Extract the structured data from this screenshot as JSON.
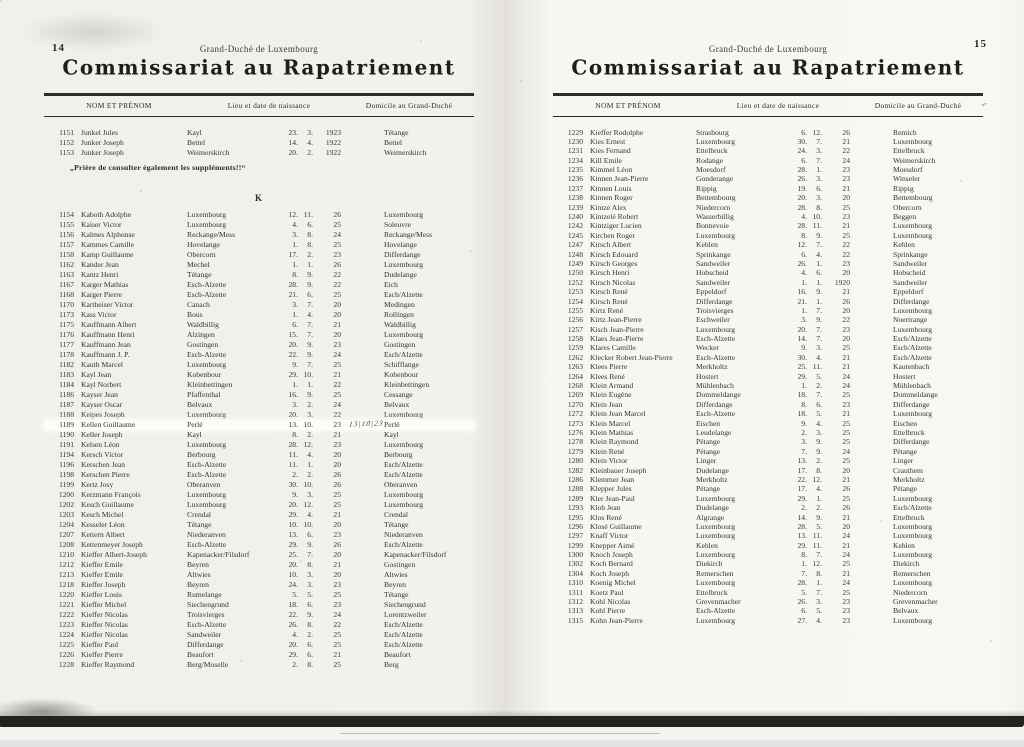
{
  "left_page": {
    "page_number": "14",
    "region_label": "Grand-Duché de Luxembourg",
    "title": "Commissariat au Rapatriement",
    "col_headers": {
      "name": "NOM ET PRÉNOM",
      "birth": "Lieu et date de naissance",
      "domicile": "Domicile au Grand-Duché"
    },
    "entries_before_note": [
      [
        "1151",
        "Junkel Jules",
        "Kayl",
        "23. 3. 1923",
        "Tétange"
      ],
      [
        "1152",
        "Junker Joseph",
        "Bettel",
        "14. 4. 1922",
        "Bettel"
      ],
      [
        "1153",
        "Junker Joseph",
        "Weimerskirch",
        "20. 2. 1922",
        "Weimerskirch"
      ]
    ],
    "note": "„Prière de consulter également les suppléments!!“",
    "section_letter": "K",
    "entries": [
      [
        "1154",
        "Kaboth Adolphe",
        "Luxembourg",
        "12. 11. 26",
        "Luxembourg"
      ],
      [
        "1155",
        "Kaiser Victor",
        "Luxembourg",
        "4. 6. 25",
        "Soleuvre"
      ],
      [
        "1156",
        "Kalmes Alphonse",
        "Reckange/Mess",
        "3. 8. 24",
        "Reckange/Mess"
      ],
      [
        "1157",
        "Kammes Camille",
        "Hovelange",
        "1. 8. 25",
        "Hovelange"
      ],
      [
        "1158",
        "Kamp Guillaume",
        "Obercorn",
        "17. 2. 23",
        "Differdange"
      ],
      [
        "1162",
        "Kander Jean",
        "Mechel",
        "1. 1. 26",
        "Luxembourg"
      ],
      [
        "1163",
        "Kantz Henri",
        "Tétange",
        "8. 9. 22",
        "Dudelange"
      ],
      [
        "1167",
        "Karger Mathias",
        "Esch-Alzette",
        "28. 9. 22",
        "Eich"
      ],
      [
        "1168",
        "Karger Pierre",
        "Esch-Alzette",
        "21. 6. 25",
        "Esch/Alzette"
      ],
      [
        "1170",
        "Kartheiser Victor",
        "Canach",
        "3. 7. 20",
        "Medingen"
      ],
      [
        "1173",
        "Kass Victor",
        "Bous",
        "1. 4. 20",
        "Rollingen"
      ],
      [
        "1175",
        "Kauffmann Albert",
        "Waldbillig",
        "6. 7. 21",
        "Waldbillig"
      ],
      [
        "1176",
        "Kauffmann Henri",
        "Alzingen",
        "15. 7. 20",
        "Luxembourg"
      ],
      [
        "1177",
        "Kauffmann Jean",
        "Gostingen",
        "20. 9. 23",
        "Gostingen"
      ],
      [
        "1178",
        "Kauffmann J. P.",
        "Esch-Alzette",
        "22. 9. 24",
        "Esch/Alzette"
      ],
      [
        "1182",
        "Kauth Marcel",
        "Luxembourg",
        "9. 7. 25",
        "Schifflange"
      ],
      [
        "1183",
        "Kayl Jean",
        "Kobenbour",
        "29. 10. 21",
        "Kobenbour"
      ],
      [
        "1184",
        "Kayl Norbert",
        "Kleinbettingen",
        "1. 1. 22",
        "Kleinbettingen"
      ],
      [
        "1186",
        "Kayser Jean",
        "Pfaffenthal",
        "16. 9. 25",
        "Cessange"
      ],
      [
        "1187",
        "Kayser Oscar",
        "Belvaux",
        "3. 2. 24",
        "Belvaux"
      ],
      [
        "1188",
        "Keipes Joseph",
        "Luxembourg",
        "20. 3. 22",
        "Luxembourg"
      ],
      [
        "1189",
        "Kellen Guillaume",
        "Perlé",
        "13. 10. 23",
        "Perlé"
      ],
      [
        "1190",
        "Keller Joseph",
        "Kayl",
        "8. 2. 21",
        "Kayl"
      ],
      [
        "1191",
        "Kelsen Léon",
        "Luxembourg",
        "28. 12. 23",
        "Luxembourg"
      ],
      [
        "1194",
        "Kersch Victor",
        "Berbourg",
        "11. 4. 20",
        "Berbourg"
      ],
      [
        "1196",
        "Kerschen Jean",
        "Esch-Alzette",
        "11. 1. 20",
        "Esch/Alzette"
      ],
      [
        "1198",
        "Kerschen Pierre",
        "Esch-Alzette",
        "2. 2. 26",
        "Esch/Alzette"
      ],
      [
        "1199",
        "Kertz Josy",
        "Oberanven",
        "30. 10. 26",
        "Oberanven"
      ],
      [
        "1200",
        "Kerzmann François",
        "Luxembourg",
        "9. 3. 25",
        "Luxembourg"
      ],
      [
        "1202",
        "Kesch Guillaume",
        "Luxembourg",
        "20. 12. 25",
        "Luxembourg"
      ],
      [
        "1203",
        "Kesch Michel",
        "Crendal",
        "29. 4. 21",
        "Crendal"
      ],
      [
        "1204",
        "Kesseler Léon",
        "Tétange",
        "10. 10. 20",
        "Tétange"
      ],
      [
        "1207",
        "Kettern Albert",
        "Niederanven",
        "13. 6. 23",
        "Niederanven"
      ],
      [
        "1208",
        "Kettenmeyer Joseph",
        "Esch-Alzette",
        "29. 9. 26",
        "Esch/Alzette"
      ],
      [
        "1210",
        "Kieffer Albert-Joseph",
        "Kapenacker/Filsdorf",
        "25. 7. 20",
        "Kapenacker/Filsdorf"
      ],
      [
        "1212",
        "Kieffer Emile",
        "Beyren",
        "20. 8. 21",
        "Gostingen"
      ],
      [
        "1213",
        "Kieffer Emile",
        "Altwies",
        "10. 3. 20",
        "Altwies"
      ],
      [
        "1218",
        "Kieffer Joseph",
        "Beyren",
        "24. 3. 23",
        "Beyren"
      ],
      [
        "1220",
        "Kieffer Louis",
        "Rumelange",
        "5. 5. 25",
        "Tétange"
      ],
      [
        "1221",
        "Kieffer Michel",
        "Siechengrund",
        "18. 6. 23",
        "Siechengrund"
      ],
      [
        "1222",
        "Kieffer Nicolas",
        "Troisvierges",
        "22. 9. 24",
        "Lorentzweiler"
      ],
      [
        "1223",
        "Kieffer Nicolas",
        "Esch-Alzette",
        "26. 8. 22",
        "Esch/Alzette"
      ],
      [
        "1224",
        "Kieffer Nicolas",
        "Sandweiler",
        "4. 2. 25",
        "Esch/Alzette"
      ],
      [
        "1225",
        "Kieffer Paul",
        "Differdange",
        "20. 6. 25",
        "Esch/Alzette"
      ],
      [
        "1226",
        "Kieffer Pierre",
        "Beaufort",
        "29. 6. 21",
        "Beaufort"
      ],
      [
        "1228",
        "Kieffer Raymond",
        "Berg/Moselle",
        "2. 8. 25",
        "Berg"
      ]
    ],
    "highlight": {
      "entry_num": "1189",
      "handwriting": "13|10|23"
    }
  },
  "right_page": {
    "page_number": "15",
    "region_label": "Grand-Duché de Luxembourg",
    "title": "Commissariat au Rapatriement",
    "col_headers": {
      "name": "NOM ET PRÉNOM",
      "birth": "Lieu et date de naissance",
      "domicile": "Domicile au Grand-Duché"
    },
    "header_mark": "⌐",
    "entries": [
      [
        "1229",
        "Kieffer Rodolphe",
        "Strasbourg",
        "6. 12. 26",
        "Remich"
      ],
      [
        "1230",
        "Kies Ernest",
        "Luxembourg",
        "30. 7. 21",
        "Luxembourg"
      ],
      [
        "1231",
        "Kies Fernand",
        "Ettelbruck",
        "24. 3. 22",
        "Ettelbruck"
      ],
      [
        "1234",
        "Kill Emile",
        "Rodange",
        "6. 7. 24",
        "Weimerskirch"
      ],
      [
        "1235",
        "Kimmel Léon",
        "Moesdorf",
        "28. 1. 23",
        "Moesdorf"
      ],
      [
        "1236",
        "Kinnen Jean-Pierre",
        "Gonderange",
        "26. 3. 23",
        "Winseler"
      ],
      [
        "1237",
        "Kinnen Louis",
        "Rippig",
        "19. 6. 21",
        "Rippig"
      ],
      [
        "1238",
        "Kinnen Roger",
        "Bettembourg",
        "20. 3. 20",
        "Bettembourg"
      ],
      [
        "1239",
        "Kintze Alex",
        "Niedercorn",
        "28. 8. 25",
        "Obercorn"
      ],
      [
        "1240",
        "Kintzelé Robert",
        "Wasserbillig",
        "4. 10. 23",
        "Beggen"
      ],
      [
        "1242",
        "Kintziger Lucien",
        "Bonnevoie",
        "28. 11. 21",
        "Luxembourg"
      ],
      [
        "1245",
        "Kirchen Roger",
        "Luxembourg",
        "8. 9. 25",
        "Luxembourg"
      ],
      [
        "1247",
        "Kirsch Albert",
        "Kehlen",
        "12. 7. 22",
        "Kehlen"
      ],
      [
        "1248",
        "Kirsch Edouard",
        "Sprinkange",
        "6. 4. 22",
        "Sprinkange"
      ],
      [
        "1249",
        "Kirsch Georges",
        "Sandweiler",
        "26. 1. 23",
        "Sandweiler"
      ],
      [
        "1250",
        "Kirsch Henri",
        "Hobscheid",
        "4. 6. 20",
        "Hobscheid"
      ],
      [
        "1252",
        "Kirsch Nicolas",
        "Sandweiler",
        "1. 1. 1920",
        "Sandweiler"
      ],
      [
        "1253",
        "Kirsch René",
        "Eppeldorf",
        "16. 9. 21",
        "Eppeldorf"
      ],
      [
        "1254",
        "Kirsch René",
        "Differdange",
        "21. 1. 26",
        "Differdange"
      ],
      [
        "1255",
        "Kirtz René",
        "Troisvierges",
        "1. 7. 20",
        "Luxembourg"
      ],
      [
        "1256",
        "Kirtz Jean-Pierre",
        "Eschweiler",
        "3. 9. 22",
        "Noertrange"
      ],
      [
        "1257",
        "Kisch Jean-Pierre",
        "Luxembourg",
        "20. 7. 23",
        "Luxembourg"
      ],
      [
        "1258",
        "Klaes Jean-Pierre",
        "Esch-Alzette",
        "14. 7. 20",
        "Esch/Alzette"
      ],
      [
        "1259",
        "Klares Camille",
        "Wecker",
        "9. 3. 25",
        "Esch/Alzette"
      ],
      [
        "1262",
        "Klecker Robert Jean-Pierre",
        "Esch-Alzette",
        "30. 4. 21",
        "Esch/Alzette"
      ],
      [
        "1263",
        "Klees Pierre",
        "Merkholtz",
        "25. 11. 21",
        "Kautenbach"
      ],
      [
        "1264",
        "Klees René",
        "Hostert",
        "29. 5. 24",
        "Hostert"
      ],
      [
        "1268",
        "Klein Armand",
        "Mühlenbach",
        "1. 2. 24",
        "Mühlenbach"
      ],
      [
        "1269",
        "Klein Eugène",
        "Dommeldange",
        "18. 7. 25",
        "Dommeldange"
      ],
      [
        "1270",
        "Klein Jean",
        "Differdange",
        "8. 6. 23",
        "Differdange"
      ],
      [
        "1272",
        "Klein Jean Marcel",
        "Esch-Alzette",
        "18. 5. 21",
        "Luxembourg"
      ],
      [
        "1273",
        "Klein Marcel",
        "Eischen",
        "9. 4. 25",
        "Eischen"
      ],
      [
        "1276",
        "Klein Mathias",
        "Leudelange",
        "2. 3. 25",
        "Ettelbruck"
      ],
      [
        "1278",
        "Klein Raymond",
        "Pétange",
        "3. 9. 25",
        "Differdange"
      ],
      [
        "1279",
        "Klein René",
        "Pétange",
        "7. 9. 24",
        "Pétange"
      ],
      [
        "1280",
        "Klein Victor",
        "Linger",
        "13. 2. 25",
        "Linger"
      ],
      [
        "1282",
        "Kleinbauer Joseph",
        "Dudelange",
        "17. 8. 20",
        "Crauthem"
      ],
      [
        "1286",
        "Klemmer Jean",
        "Merkholtz",
        "22. 12. 21",
        "Merkholtz"
      ],
      [
        "1288",
        "Klepper Jules",
        "Pétange",
        "17. 4. 26",
        "Pétange"
      ],
      [
        "1289",
        "Kler Jean-Paul",
        "Luxembourg",
        "29. 1. 25",
        "Luxembourg"
      ],
      [
        "1293",
        "Klob Jean",
        "Dudelange",
        "2. 2. 26",
        "Esch/Alzette"
      ],
      [
        "1295",
        "Klos René",
        "Algrange",
        "14. 9. 21",
        "Ettelbruck"
      ],
      [
        "1296",
        "Klosé Guillaume",
        "Luxembourg",
        "28. 5. 20",
        "Luxembourg"
      ],
      [
        "1297",
        "Knaff Victor",
        "Luxembourg",
        "13. 11. 24",
        "Luxembourg"
      ],
      [
        "1299",
        "Knepper Aimé",
        "Kehlen",
        "29. 11. 21",
        "Kehlen"
      ],
      [
        "1300",
        "Knoch Joseph",
        "Luxembourg",
        "8. 7. 24",
        "Luxembourg"
      ],
      [
        "1302",
        "Koch Bernard",
        "Diekirch",
        "1. 12. 25",
        "Diekirch"
      ],
      [
        "1304",
        "Koch Joseph",
        "Remerschen",
        "7. 8. 21",
        "Remerschen"
      ],
      [
        "1310",
        "Koenig Michel",
        "Luxembourg",
        "28. 1. 24",
        "Luxembourg"
      ],
      [
        "1311",
        "Koetz Paul",
        "Ettelbruck",
        "5. 7. 25",
        "Niedercorn"
      ],
      [
        "1312",
        "Kohl Nicolas",
        "Grevenmacher",
        "26. 3. 23",
        "Grevenmacher"
      ],
      [
        "1313",
        "Kohl Pierre",
        "Esch-Alzette",
        "6. 5. 23",
        "Belvaux"
      ],
      [
        "1315",
        "Kohn Jean-Pierre",
        "Luxembourg",
        "27. 4. 23",
        "Luxembourg"
      ]
    ]
  }
}
